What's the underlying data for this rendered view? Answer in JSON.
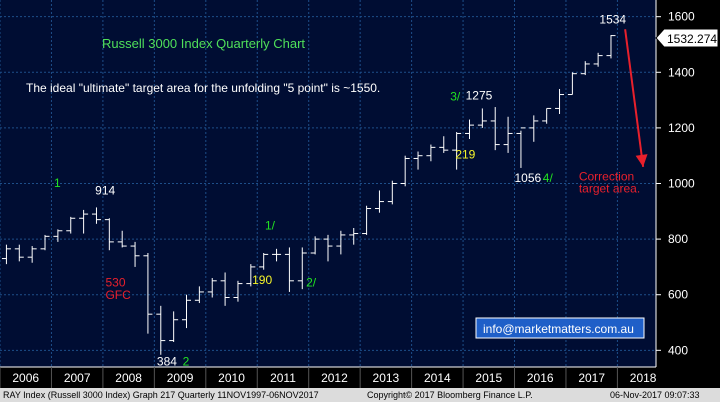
{
  "chart_data": {
    "type": "bar",
    "subtype": "OHLC quarterly",
    "title": "Russell 3000 Index Quarterly Chart",
    "subtitle": "The ideal \"ultimate\" target area for the unfolding \"5 point\" is ~1550.",
    "xlabel": "",
    "ylabel": "",
    "ylim": [
      340,
      1660
    ],
    "xlim": [
      2006.0,
      2018.75
    ],
    "yticks": [
      400,
      600,
      800,
      1000,
      1200,
      1400,
      1600
    ],
    "xticks": [
      2006,
      2007,
      2008,
      2009,
      2010,
      2011,
      2012,
      2013,
      2014,
      2015,
      2016,
      2017,
      2018
    ],
    "grid": true,
    "last_price": "1532.274",
    "bars": [
      {
        "t": 2006.0,
        "o": 730,
        "h": 780,
        "l": 710,
        "c": 765
      },
      {
        "t": 2006.25,
        "o": 765,
        "h": 780,
        "l": 720,
        "c": 735
      },
      {
        "t": 2006.5,
        "o": 735,
        "h": 775,
        "l": 715,
        "c": 765
      },
      {
        "t": 2006.75,
        "o": 765,
        "h": 815,
        "l": 760,
        "c": 810
      },
      {
        "t": 2007.0,
        "o": 810,
        "h": 835,
        "l": 790,
        "c": 830
      },
      {
        "t": 2007.25,
        "o": 830,
        "h": 880,
        "l": 820,
        "c": 875
      },
      {
        "t": 2007.5,
        "o": 875,
        "h": 905,
        "l": 820,
        "c": 890
      },
      {
        "t": 2007.75,
        "o": 890,
        "h": 914,
        "l": 855,
        "c": 870
      },
      {
        "t": 2008.0,
        "o": 870,
        "h": 875,
        "l": 760,
        "c": 790
      },
      {
        "t": 2008.25,
        "o": 790,
        "h": 830,
        "l": 770,
        "c": 775
      },
      {
        "t": 2008.5,
        "o": 775,
        "h": 790,
        "l": 700,
        "c": 740
      },
      {
        "t": 2008.75,
        "o": 740,
        "h": 750,
        "l": 460,
        "c": 530
      },
      {
        "t": 2009.0,
        "o": 530,
        "h": 560,
        "l": 384,
        "c": 435
      },
      {
        "t": 2009.25,
        "o": 435,
        "h": 540,
        "l": 430,
        "c": 510
      },
      {
        "t": 2009.5,
        "o": 510,
        "h": 600,
        "l": 480,
        "c": 580
      },
      {
        "t": 2009.75,
        "o": 580,
        "h": 630,
        "l": 570,
        "c": 610
      },
      {
        "t": 2010.0,
        "o": 610,
        "h": 660,
        "l": 590,
        "c": 650
      },
      {
        "t": 2010.25,
        "o": 650,
        "h": 680,
        "l": 560,
        "c": 590
      },
      {
        "t": 2010.5,
        "o": 590,
        "h": 650,
        "l": 575,
        "c": 640
      },
      {
        "t": 2010.75,
        "o": 640,
        "h": 710,
        "l": 630,
        "c": 700
      },
      {
        "t": 2011.0,
        "o": 700,
        "h": 750,
        "l": 690,
        "c": 745
      },
      {
        "t": 2011.25,
        "o": 745,
        "h": 765,
        "l": 720,
        "c": 745
      },
      {
        "t": 2011.5,
        "o": 745,
        "h": 770,
        "l": 610,
        "c": 650
      },
      {
        "t": 2011.75,
        "o": 650,
        "h": 770,
        "l": 620,
        "c": 750
      },
      {
        "t": 2012.0,
        "o": 750,
        "h": 810,
        "l": 745,
        "c": 800
      },
      {
        "t": 2012.25,
        "o": 800,
        "h": 815,
        "l": 720,
        "c": 775
      },
      {
        "t": 2012.5,
        "o": 775,
        "h": 830,
        "l": 745,
        "c": 815
      },
      {
        "t": 2012.75,
        "o": 815,
        "h": 840,
        "l": 780,
        "c": 820
      },
      {
        "t": 2013.0,
        "o": 820,
        "h": 920,
        "l": 815,
        "c": 910
      },
      {
        "t": 2013.25,
        "o": 910,
        "h": 975,
        "l": 895,
        "c": 935
      },
      {
        "t": 2013.5,
        "o": 935,
        "h": 1010,
        "l": 925,
        "c": 1000
      },
      {
        "t": 2013.75,
        "o": 1000,
        "h": 1100,
        "l": 990,
        "c": 1090
      },
      {
        "t": 2014.0,
        "o": 1090,
        "h": 1115,
        "l": 1050,
        "c": 1100
      },
      {
        "t": 2014.25,
        "o": 1100,
        "h": 1140,
        "l": 1080,
        "c": 1130
      },
      {
        "t": 2014.5,
        "o": 1130,
        "h": 1170,
        "l": 1110,
        "c": 1120
      },
      {
        "t": 2014.75,
        "o": 1120,
        "h": 1185,
        "l": 1050,
        "c": 1180
      },
      {
        "t": 2015.0,
        "o": 1180,
        "h": 1230,
        "l": 1160,
        "c": 1210
      },
      {
        "t": 2015.25,
        "o": 1210,
        "h": 1270,
        "l": 1200,
        "c": 1225
      },
      {
        "t": 2015.5,
        "o": 1225,
        "h": 1275,
        "l": 1120,
        "c": 1140
      },
      {
        "t": 2015.75,
        "o": 1140,
        "h": 1240,
        "l": 1110,
        "c": 1180
      },
      {
        "t": 2016.0,
        "o": 1180,
        "h": 1190,
        "l": 1056,
        "c": 1200
      },
      {
        "t": 2016.25,
        "o": 1200,
        "h": 1245,
        "l": 1150,
        "c": 1225
      },
      {
        "t": 2016.5,
        "o": 1225,
        "h": 1270,
        "l": 1215,
        "c": 1270
      },
      {
        "t": 2016.75,
        "o": 1270,
        "h": 1340,
        "l": 1250,
        "c": 1320
      },
      {
        "t": 2017.0,
        "o": 1320,
        "h": 1400,
        "l": 1320,
        "c": 1395
      },
      {
        "t": 2017.25,
        "o": 1395,
        "h": 1440,
        "l": 1390,
        "c": 1430
      },
      {
        "t": 2017.5,
        "o": 1430,
        "h": 1470,
        "l": 1420,
        "c": 1460
      },
      {
        "t": 2017.75,
        "o": 1460,
        "h": 1534,
        "l": 1450,
        "c": 1532
      }
    ],
    "annotations": [
      {
        "text": "1",
        "x": 2007.05,
        "y": 988,
        "color": "green"
      },
      {
        "text": "914",
        "x": 2007.85,
        "y": 960,
        "color": "white"
      },
      {
        "text": "530",
        "x": 2008.05,
        "y": 630,
        "color": "red"
      },
      {
        "text": "GFC",
        "x": 2008.05,
        "y": 585,
        "color": "red"
      },
      {
        "text": "384",
        "x": 2009.05,
        "y": 345,
        "color": "white"
      },
      {
        "text": "2",
        "x": 2009.55,
        "y": 345,
        "color": "green"
      },
      {
        "text": "1/",
        "x": 2011.15,
        "y": 835,
        "color": "green"
      },
      {
        "text": "190",
        "x": 2010.9,
        "y": 638,
        "color": "yellow"
      },
      {
        "text": "2/",
        "x": 2011.95,
        "y": 630,
        "color": "green"
      },
      {
        "text": "3/",
        "x": 2014.75,
        "y": 1298,
        "color": "green"
      },
      {
        "text": "1275",
        "x": 2015.05,
        "y": 1302,
        "color": "white"
      },
      {
        "text": "219",
        "x": 2014.85,
        "y": 1090,
        "color": "yellow"
      },
      {
        "text": "1056",
        "x": 2016.0,
        "y": 1005,
        "color": "white"
      },
      {
        "text": "4/",
        "x": 2016.55,
        "y": 1005,
        "color": "green"
      },
      {
        "text": "Correction",
        "x": 2017.25,
        "y": 1010,
        "color": "red"
      },
      {
        "text": "target area.",
        "x": 2017.25,
        "y": 968,
        "color": "red"
      },
      {
        "text": "1534",
        "x": 2017.65,
        "y": 1575,
        "color": "white"
      }
    ],
    "arrow": {
      "from": [
        2018.15,
        1555
      ],
      "to": [
        2018.5,
        1060
      ],
      "color": "red"
    }
  },
  "colors": {
    "background": "#000000",
    "plot_background": "#000d33",
    "grid": "#1d4e89",
    "bars": "#ffffff",
    "axis_text": "#ffffff",
    "green": "#21e321",
    "red": "#e8202c",
    "yellow": "#f5f52a",
    "title": "#4fe05a",
    "email_box": "#1f5fc8"
  },
  "contact": "info@marketmatters.com.au",
  "footer": {
    "left": "RAY Index (Russell 3000 Index) Graph 217  Quarterly 11NOV1997-06NOV2017",
    "center": "Copyright© 2017 Bloomberg Finance L.P.",
    "right": "06-Nov-2017 09:07:33"
  }
}
